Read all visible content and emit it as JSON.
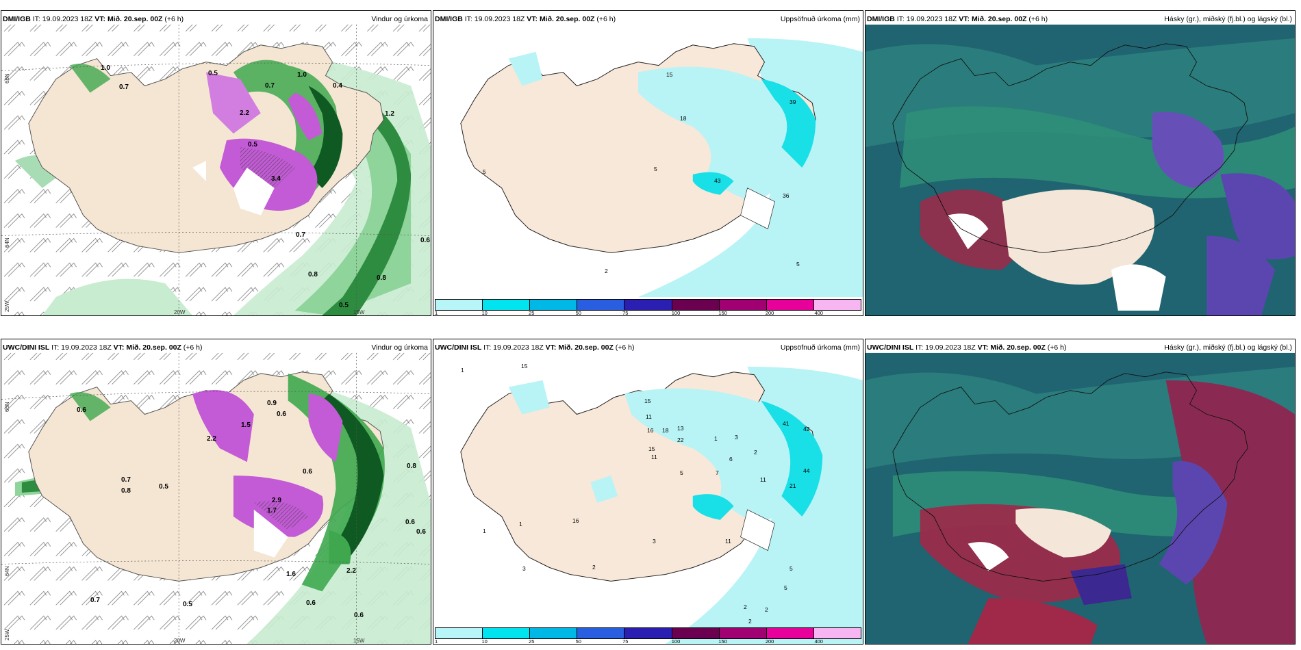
{
  "colors": {
    "land": "#f5e6d3",
    "precip_light": "#a8e2b8",
    "precip_mid": "#3fa84f",
    "precip_dark": "#0a5a22",
    "precip_heavy": "#c060d0",
    "accum_light": "#b8f3f6",
    "accum_mid": "#19dfe6",
    "cloud_dark": "#1f6470",
    "cloud_green": "#2f8f78",
    "cloud_purple": "#6650b8",
    "cloud_red": "#a02848"
  },
  "legend": {
    "ticks": [
      "1",
      "10",
      "25",
      "50",
      "75",
      "100",
      "150",
      "200",
      "400"
    ],
    "colors": [
      "#b8f5f8",
      "#00e4f0",
      "#00b8e6",
      "#2a5ee0",
      "#2a1fb0",
      "#6a004f",
      "#a00072",
      "#e8009a",
      "#f7b5f2"
    ]
  },
  "axes": {
    "lat_66": "66N",
    "lat_64": "64N",
    "lat_25": "25W",
    "lon_20": "20W",
    "lon_15": "15W"
  },
  "panels": [
    {
      "model": "DMI/IGB",
      "it": "IT: 19.09.2023 18Z",
      "vt_label": "VT:",
      "vt_value": "Mið. 20.sep. 00Z",
      "offset": "(+6 h)",
      "title": "Vindur og úrkoma",
      "labels": [
        "0.7",
        "0.5",
        "1.0",
        "0.7",
        "1.0",
        "0.4",
        "0.5",
        "2.2",
        "3.4",
        "1.2",
        "0.6",
        "0.8",
        "0.8",
        "0.7",
        "0.5"
      ]
    },
    {
      "model": "DMI/IGB",
      "it": "IT: 19.09.2023 18Z",
      "vt_label": "VT:",
      "vt_value": "Mið. 20.sep. 00Z",
      "offset": "(+6 h)",
      "title": "Uppsöfnuð úrkoma (mm)",
      "labels": [
        "15",
        "18",
        "39",
        "5",
        "43",
        "36",
        "5",
        "2",
        "5"
      ]
    },
    {
      "model": "DMI/IGB",
      "it": "IT: 19.09.2023 18Z",
      "vt_label": "VT:",
      "vt_value": "Mið. 20.sep. 00Z",
      "offset": "(+6 h)",
      "title": "Hásky (gr.), miðský (fj.bl.) og lágský (bl.)",
      "labels": []
    },
    {
      "model": "UWC/DINI ISL",
      "it": "IT: 19.09.2023 18Z",
      "vt_label": "VT:",
      "vt_value": "Mið. 20.sep. 00Z",
      "offset": "(+6 h)",
      "title": "Vindur og úrkoma",
      "labels": [
        "0.6",
        "0.9",
        "0.6",
        "1.5",
        "2.2",
        "0.7",
        "0.8",
        "0.5",
        "1.7",
        "2.9",
        "0.6",
        "0.8",
        "0.6",
        "0.6",
        "2.2",
        "1.6",
        "0.7",
        "0.5",
        "0.6",
        "0.6"
      ]
    },
    {
      "model": "UWC/DINI ISL",
      "it": "IT: 19.09.2023 18Z",
      "vt_label": "VT:",
      "vt_value": "Mið. 20.sep. 00Z",
      "offset": "(+6 h)",
      "title": "Uppsöfnuð úrkoma (mm)",
      "labels": [
        "15",
        "11",
        "16",
        "18",
        "13",
        "22",
        "15",
        "11",
        "5",
        "6",
        "2",
        "3",
        "7",
        "1",
        "41",
        "42",
        "44",
        "21",
        "11",
        "3",
        "3",
        "2",
        "5",
        "5",
        "2",
        "2",
        "2",
        "1",
        "1",
        "1",
        "16",
        "15",
        "11"
      ]
    },
    {
      "model": "UWC/DINI ISL",
      "it": "IT: 19.09.2023 18Z",
      "vt_label": "VT:",
      "vt_value": "Mið. 20.sep. 00Z",
      "offset": "(+6 h)",
      "title": "Hásky (gr.), miðský (fj.bl.) og lágský (bl.)",
      "labels": []
    }
  ]
}
